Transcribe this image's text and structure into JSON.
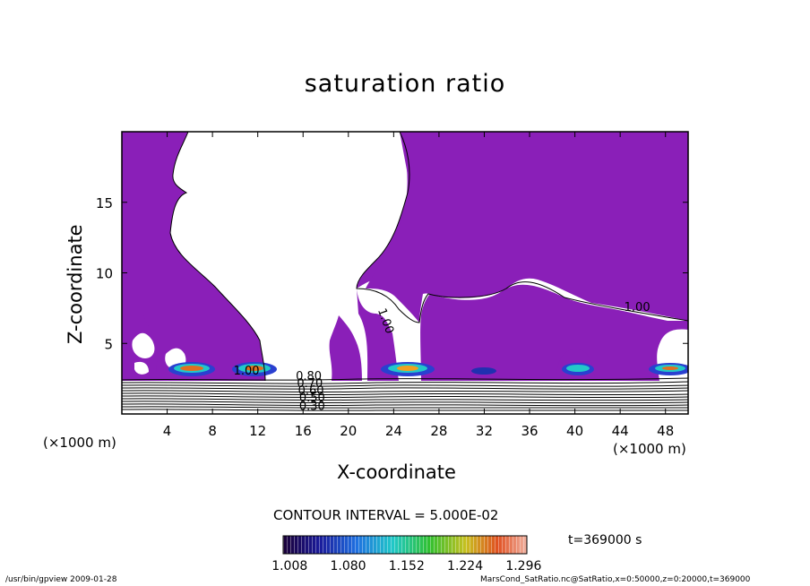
{
  "chart_data": {
    "type": "heatmap",
    "title": "saturation ratio",
    "xlabel": "X-coordinate",
    "ylabel": "Z-coordinate",
    "x_unit": "(×1000 m)",
    "z_unit": "(×1000 m)",
    "xlim": [
      0,
      50
    ],
    "ylim": [
      0,
      20
    ],
    "x_ticks": [
      4,
      8,
      12,
      16,
      20,
      24,
      28,
      32,
      36,
      40,
      44,
      48
    ],
    "y_ticks": [
      5,
      10,
      15
    ],
    "contour_interval_text": "CONTOUR INTERVAL = 5.000E-02",
    "time_text": "t=369000 s",
    "colorbar_ticks": [
      "1.008",
      "1.080",
      "1.152",
      "1.224",
      "1.296"
    ],
    "colorbar_range": [
      1.0,
      1.3
    ],
    "contour_labels": [
      "1.00",
      "1.00",
      "1.00",
      "0.80",
      "0.70",
      "0.60",
      "0.50",
      "0.30"
    ],
    "colors": {
      "supersaturated_fill": "#8a1fb8",
      "frame": "#000000"
    }
  },
  "footer": {
    "left": "/usr/bin/gpview   2009-01-28",
    "right": "MarsCond_SatRatio.nc@SatRatio,x=0:50000,z=0:20000,t=369000"
  }
}
